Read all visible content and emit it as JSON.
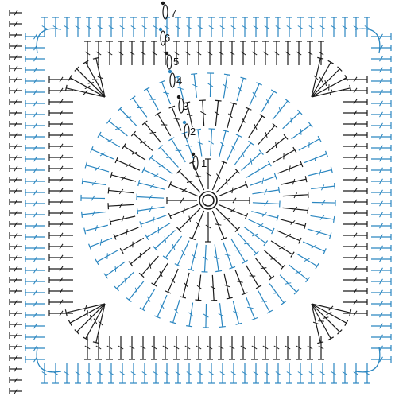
{
  "diagram": {
    "type": "crochet-granny-square",
    "colors": {
      "dark": "#1a1a1a",
      "blue": "#2a86c0"
    },
    "round_labels": [
      "1",
      "2",
      "3",
      "4",
      "5",
      "6",
      "7"
    ],
    "round_colors": [
      "dark",
      "blue",
      "dark",
      "blue",
      "dark",
      "blue",
      "dark"
    ],
    "symbols": [
      "magic-ring",
      "chain-oval",
      "slip-stitch-dot",
      "double-crochet-tall",
      "corner-fan"
    ]
  }
}
